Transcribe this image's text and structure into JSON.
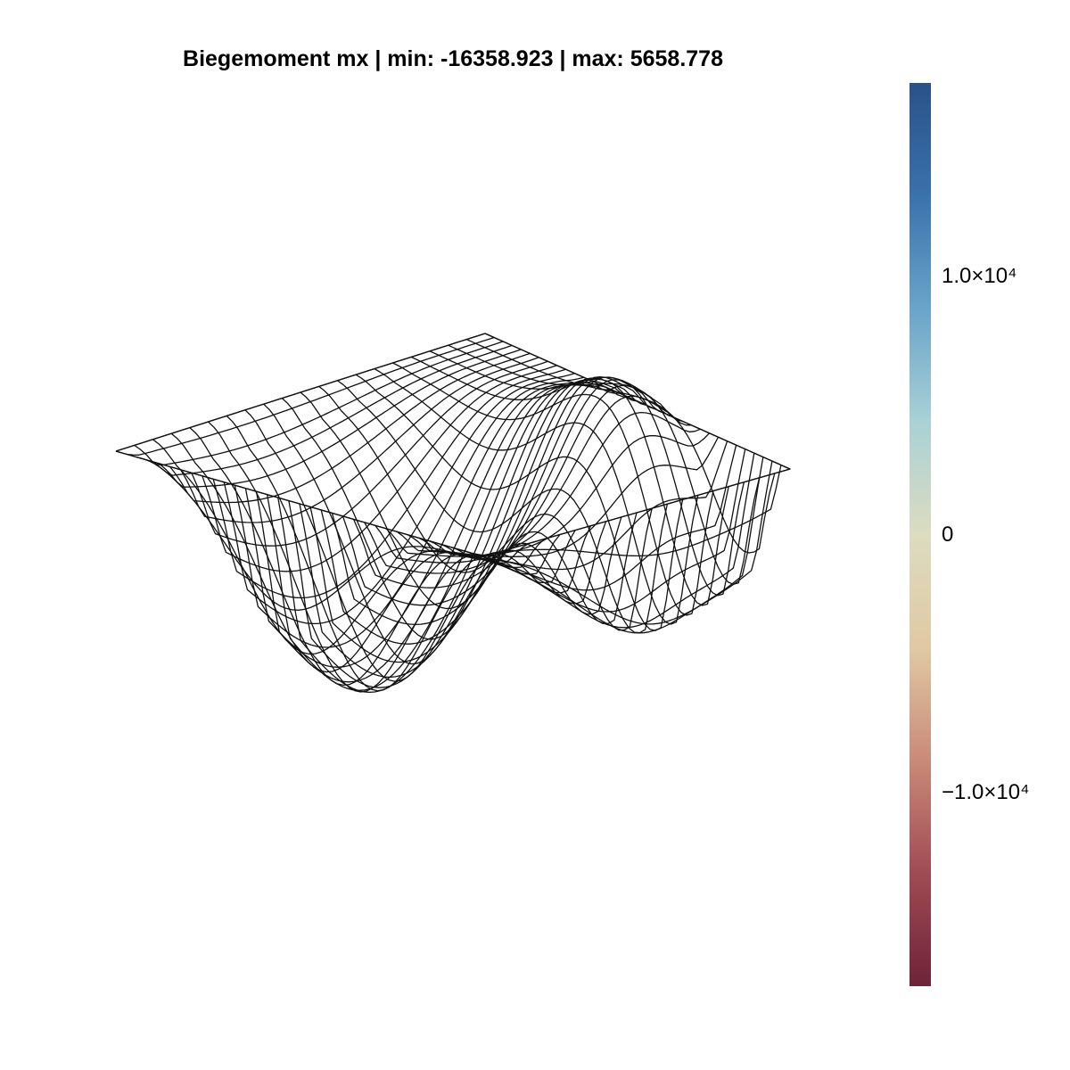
{
  "chart_data": {
    "type": "surface-wireframe",
    "title": "Biegemoment mx | min: -16358.923 | max: 5658.778",
    "value_min": -16358.923,
    "value_max": 5658.778,
    "colorbar": {
      "colormap": "diverging red-to-blue",
      "range": [
        -17500,
        17500
      ],
      "ticks": [
        {
          "value": 10000,
          "label": "1.0×10⁴"
        },
        {
          "value": 0,
          "label": "0"
        },
        {
          "value": -10000,
          "label": "−1.0×10⁴"
        }
      ],
      "colors": [
        "#6e2338",
        "#a04b54",
        "#c98a78",
        "#e0c9a4",
        "#dcdcc0",
        "#a9d1d6",
        "#6aa4c9",
        "#3a72ab",
        "#2a5189"
      ]
    },
    "grid": false,
    "axes_visible": false
  }
}
